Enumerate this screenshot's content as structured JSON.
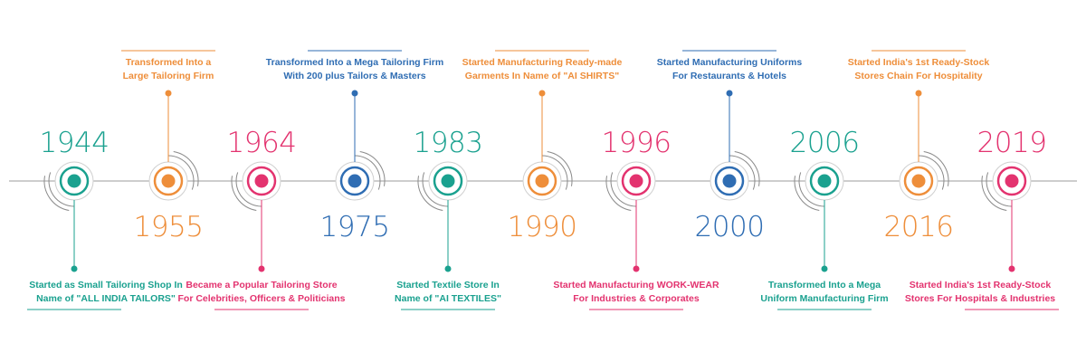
{
  "colors": {
    "teal": "#1aa18f",
    "orange": "#ee8e3a",
    "pink": "#e3336f",
    "blue": "#2f6db3",
    "line": "#9e9e9e",
    "ring": "#8a8a8a"
  },
  "milestones": [
    {
      "year": "1944",
      "color": "teal",
      "year_pos": "top",
      "caption_pos": "bottom",
      "caption": [
        "Started as Small Tailoring Shop In",
        "Name of \"ALL INDIA TAILORS\""
      ]
    },
    {
      "year": "1955",
      "color": "orange",
      "year_pos": "bottom",
      "caption_pos": "top",
      "caption": [
        "Transformed Into a",
        "Large Tailoring Firm"
      ]
    },
    {
      "year": "1964",
      "color": "pink",
      "year_pos": "top",
      "caption_pos": "bottom",
      "caption": [
        "Became a Popular Tailoring Store",
        "For Celebrities, Officers & Politicians"
      ]
    },
    {
      "year": "1975",
      "color": "blue",
      "year_pos": "bottom",
      "caption_pos": "top",
      "caption": [
        "Transformed Into a Mega Tailoring Firm",
        "With 200 plus Tailors & Masters"
      ]
    },
    {
      "year": "1983",
      "color": "teal",
      "year_pos": "top",
      "caption_pos": "bottom",
      "caption": [
        "Started Textile Store In",
        "Name of \"AI TEXTILES\""
      ]
    },
    {
      "year": "1990",
      "color": "orange",
      "year_pos": "bottom",
      "caption_pos": "top",
      "caption": [
        "Started Manufacturing Ready-made",
        "Garments In Name of \"AI SHIRTS\""
      ]
    },
    {
      "year": "1996",
      "color": "pink",
      "year_pos": "top",
      "caption_pos": "bottom",
      "caption": [
        "Started Manufacturing WORK-WEAR",
        "For Industries & Corporates"
      ]
    },
    {
      "year": "2000",
      "color": "blue",
      "year_pos": "bottom",
      "caption_pos": "top",
      "caption": [
        "Started Manufacturing Uniforms",
        "For Restaurants & Hotels"
      ]
    },
    {
      "year": "2006",
      "color": "teal",
      "year_pos": "top",
      "caption_pos": "bottom",
      "caption": [
        "Transformed Into a Mega",
        "Uniform Manufacturing Firm"
      ]
    },
    {
      "year": "2016",
      "color": "orange",
      "year_pos": "bottom",
      "caption_pos": "top",
      "caption": [
        "Started India's 1st Ready-Stock",
        "Stores Chain For Hospitality"
      ]
    },
    {
      "year": "2019",
      "color": "pink",
      "year_pos": "top",
      "caption_pos": "bottom",
      "caption": [
        "Started India's 1st Ready-Stock",
        "Stores For Hospitals & Industries"
      ]
    }
  ]
}
